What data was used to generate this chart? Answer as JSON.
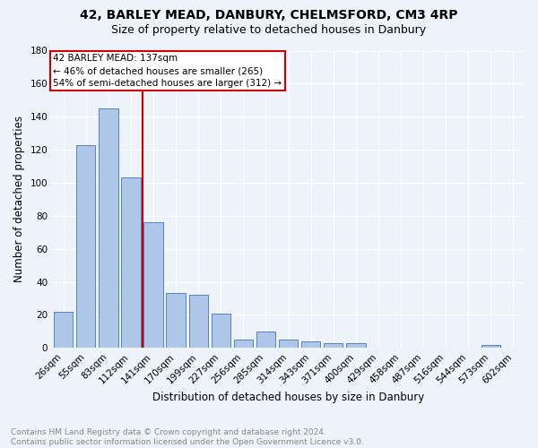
{
  "title1": "42, BARLEY MEAD, DANBURY, CHELMSFORD, CM3 4RP",
  "title2": "Size of property relative to detached houses in Danbury",
  "xlabel": "Distribution of detached houses by size in Danbury",
  "ylabel": "Number of detached properties",
  "categories": [
    "26sqm",
    "55sqm",
    "83sqm",
    "112sqm",
    "141sqm",
    "170sqm",
    "199sqm",
    "227sqm",
    "256sqm",
    "285sqm",
    "314sqm",
    "343sqm",
    "371sqm",
    "400sqm",
    "429sqm",
    "458sqm",
    "487sqm",
    "516sqm",
    "544sqm",
    "573sqm",
    "602sqm"
  ],
  "values": [
    22,
    123,
    145,
    103,
    76,
    33,
    32,
    21,
    5,
    10,
    5,
    4,
    3,
    3,
    0,
    0,
    0,
    0,
    0,
    2,
    0
  ],
  "bar_color": "#aec6e8",
  "bar_edge_color": "#4472c4",
  "vline_x": 3.5,
  "vline_color": "#cc0000",
  "annotation_text": "42 BARLEY MEAD: 137sqm\n← 46% of detached houses are smaller (265)\n54% of semi-detached houses are larger (312) →",
  "annotation_box_color": "#ffffff",
  "annotation_box_edge": "#cc0000",
  "ylim": [
    0,
    180
  ],
  "yticks": [
    0,
    20,
    40,
    60,
    80,
    100,
    120,
    140,
    160,
    180
  ],
  "footer": "Contains HM Land Registry data © Crown copyright and database right 2024.\nContains public sector information licensed under the Open Government Licence v3.0.",
  "background_color": "#eef2f9",
  "grid_color": "#ffffff",
  "title_fontsize": 10,
  "subtitle_fontsize": 9,
  "axis_label_fontsize": 8.5,
  "tick_fontsize": 7.5,
  "footer_fontsize": 6.5
}
